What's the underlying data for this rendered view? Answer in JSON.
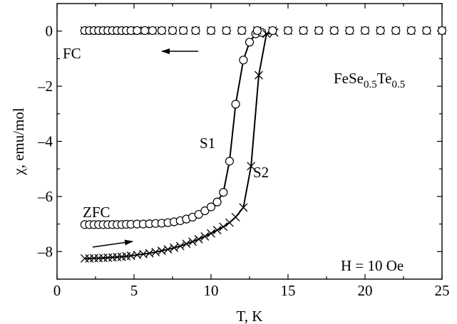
{
  "chart_data": {
    "type": "scatter",
    "title": "",
    "xlabel": "T, K",
    "ylabel": "χ, emu/mol",
    "xlim": [
      0,
      25
    ],
    "ylim": [
      -9,
      1
    ],
    "x_ticks": [
      0,
      5,
      10,
      15,
      20,
      25
    ],
    "x_tick_labels": [
      "0",
      "5",
      "10",
      "15",
      "20",
      "25"
    ],
    "y_ticks": [
      0,
      -2,
      -4,
      -6,
      -8
    ],
    "y_tick_labels": [
      "0",
      "–2",
      "–4",
      "–6",
      "–8"
    ],
    "grid": false,
    "legend": "none",
    "series": [
      {
        "name": "S1",
        "marker": "circle",
        "line": true,
        "x": [
          1.8,
          2.1,
          2.4,
          2.7,
          3.0,
          3.3,
          3.6,
          3.9,
          4.2,
          4.5,
          4.8,
          5.2,
          5.6,
          6.0,
          6.4,
          6.8,
          7.2,
          7.6,
          8.0,
          8.4,
          8.8,
          9.2,
          9.6,
          10.0,
          10.4,
          10.8,
          11.2,
          11.6,
          12.1,
          12.5,
          12.9,
          13.3
        ],
        "y": [
          -7.02,
          -7.02,
          -7.02,
          -7.02,
          -7.02,
          -7.02,
          -7.02,
          -7.02,
          -7.02,
          -7.01,
          -7.01,
          -7.0,
          -7.0,
          -6.99,
          -6.98,
          -6.97,
          -6.95,
          -6.92,
          -6.88,
          -6.82,
          -6.75,
          -6.65,
          -6.52,
          -6.38,
          -6.2,
          -5.85,
          -4.72,
          -2.65,
          -1.05,
          -0.4,
          -0.1,
          -0.05
        ]
      },
      {
        "name": "S2",
        "marker": "x",
        "line": true,
        "x": [
          1.8,
          2.1,
          2.4,
          2.7,
          3.0,
          3.3,
          3.6,
          3.9,
          4.2,
          4.5,
          4.8,
          5.2,
          5.6,
          6.0,
          6.4,
          6.8,
          7.2,
          7.6,
          8.0,
          8.4,
          8.8,
          9.2,
          9.6,
          10.0,
          10.4,
          10.8,
          11.2,
          11.6,
          12.1,
          12.6,
          13.1,
          13.6,
          14.1
        ],
        "y": [
          -8.25,
          -8.25,
          -8.24,
          -8.24,
          -8.23,
          -8.22,
          -8.21,
          -8.2,
          -8.19,
          -8.17,
          -8.15,
          -8.12,
          -8.09,
          -8.06,
          -8.02,
          -7.97,
          -7.92,
          -7.86,
          -7.8,
          -7.72,
          -7.64,
          -7.55,
          -7.45,
          -7.34,
          -7.22,
          -7.1,
          -6.95,
          -6.75,
          -6.4,
          -4.9,
          -1.6,
          -0.1,
          -0.05
        ]
      },
      {
        "name": "FC",
        "marker": "circle+x",
        "line": false,
        "x": [
          1.8,
          2.1,
          2.4,
          2.7,
          3.0,
          3.3,
          3.6,
          3.9,
          4.2,
          4.5,
          4.8,
          5.2,
          5.7,
          6.2,
          6.8,
          7.5,
          8.2,
          9.0,
          10.0,
          11.0,
          12.0,
          13.0,
          14.0,
          15.0,
          16.0,
          17.0,
          18.0,
          19.0,
          20.0,
          21.0,
          22.0,
          23.0,
          24.0,
          25.0
        ],
        "y": [
          0.02,
          0.02,
          0.02,
          0.02,
          0.02,
          0.02,
          0.02,
          0.02,
          0.02,
          0.02,
          0.02,
          0.02,
          0.02,
          0.02,
          0.02,
          0.02,
          0.02,
          0.02,
          0.02,
          0.02,
          0.02,
          0.02,
          0.02,
          0.02,
          0.02,
          0.02,
          0.02,
          0.02,
          0.02,
          0.02,
          0.02,
          0.02,
          0.02,
          0.02
        ]
      }
    ],
    "annotations": [
      {
        "id": "fc",
        "text": "FC"
      },
      {
        "id": "zfc",
        "text": "ZFC"
      },
      {
        "id": "s1",
        "text": "S1"
      },
      {
        "id": "s2",
        "text": "S2"
      },
      {
        "id": "field",
        "text": "H = 10 Oe"
      }
    ],
    "compound_label": {
      "base1": "FeSe",
      "sub1": "0.5",
      "base2": "Te",
      "sub2": "0.5"
    },
    "arrows": [
      {
        "id": "fc-arrow",
        "direction": "left"
      },
      {
        "id": "zfc-arrow",
        "direction": "right"
      }
    ]
  }
}
